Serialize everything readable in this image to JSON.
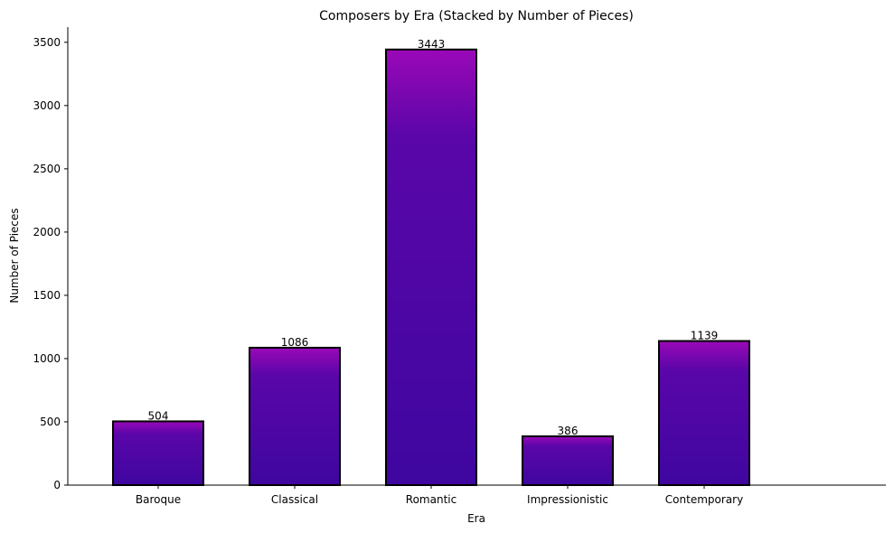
{
  "chart_data": {
    "type": "bar",
    "title": "Composers by Era (Stacked by Number of Pieces)",
    "xlabel": "Era",
    "ylabel": "Number of Pieces",
    "categories": [
      "Baroque",
      "Classical",
      "Romantic",
      "Impressionistic",
      "Contemporary"
    ],
    "values": [
      504,
      1086,
      3443,
      386,
      1139
    ],
    "ylim": [
      0,
      3620
    ],
    "yticks": [
      0,
      500,
      1000,
      1500,
      2000,
      2500,
      3000,
      3500
    ],
    "grid": false,
    "legend": "none",
    "colors": {
      "bar_base": "#3f06a0",
      "bar_top": "#9a08b8",
      "edge": "#000000"
    }
  }
}
